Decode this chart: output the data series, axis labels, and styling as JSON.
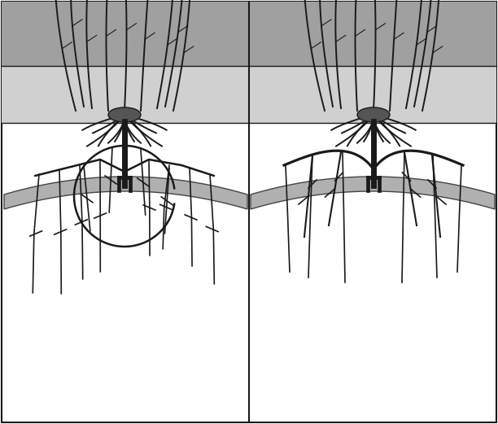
{
  "bg_color": "#ffffff",
  "soil_layer1_color": "#d0d0d0",
  "soil_layer2_color": "#a0a0a0",
  "wire_color": "#b0b0b0",
  "wire_edge_color": "#444444",
  "line_color": "#1a1a1a",
  "trunk_color": "#1a1a1a",
  "figsize": [
    6.12,
    5.21
  ],
  "dpi": 100
}
